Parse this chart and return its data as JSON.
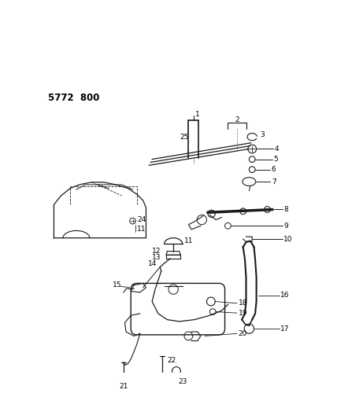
{
  "title": "5772  800",
  "bg_color": "#ffffff",
  "line_color": "#1a1a1a",
  "figsize": [
    4.28,
    5.33
  ],
  "dpi": 100
}
